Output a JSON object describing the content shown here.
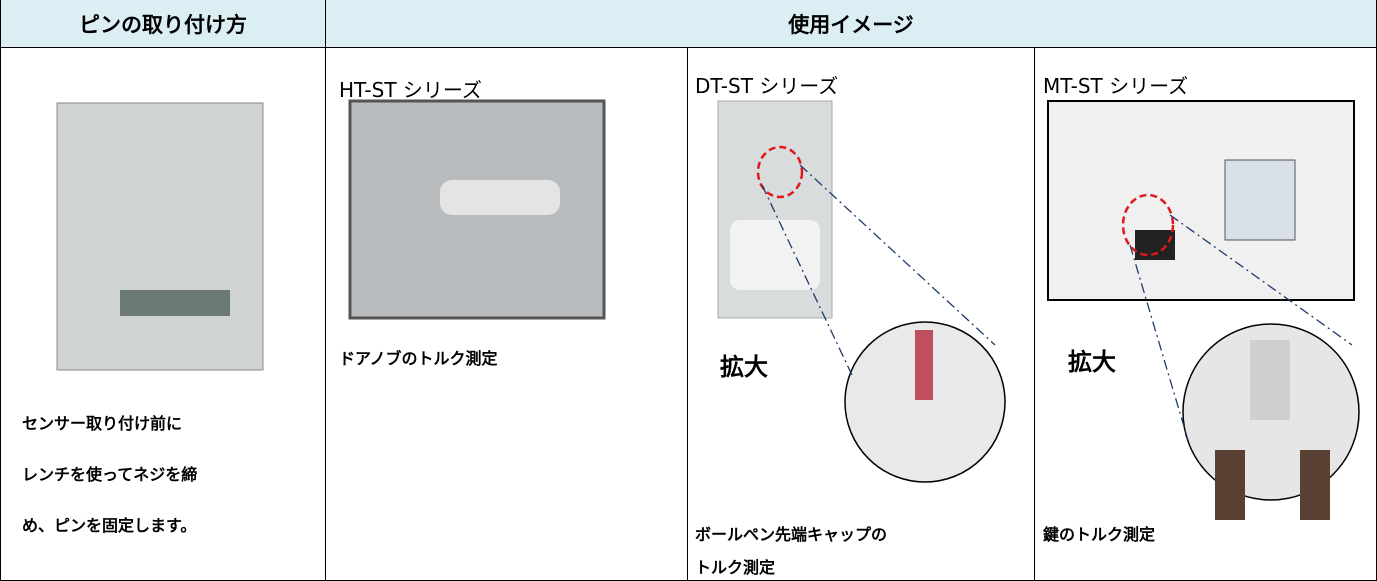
{
  "table": {
    "headers": [
      "ピンの取り付け方",
      "使用イメージ"
    ],
    "columns": [
      {
        "caption": [
          "センサー取り付け前に",
          "レンチを使ってネジを締",
          "め、ピンを固定します。"
        ]
      },
      {
        "series": "HT-ST シリーズ",
        "caption": [
          "ドアノブのトルク測定"
        ]
      },
      {
        "series": "DT-ST シリーズ",
        "zoom": "拡大",
        "caption": [
          "ボールペン先端キャップの",
          "トルク測定"
        ]
      },
      {
        "series": "MT-ST シリーズ",
        "zoom": "拡大",
        "caption": [
          "鍵のトルク測定"
        ]
      }
    ]
  }
}
